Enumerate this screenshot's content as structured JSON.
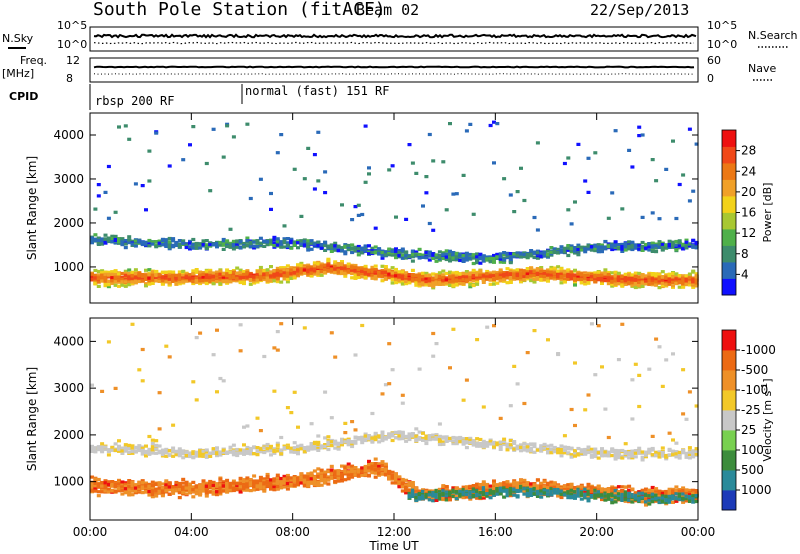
{
  "header": {
    "station": "South Pole Station (fitACF)",
    "beam": "Beam 02",
    "date": "22/Sep/2013"
  },
  "status_panel": {
    "nsky_label": "N.Sky",
    "nsearch_label": "N.Search",
    "freq_label": "Freq.",
    "freq_unit": "[MHz]",
    "nave_label": "Nave",
    "cpid_label": "CPID",
    "noise_top_tick": "10^5",
    "noise_bottom_tick": "10^0",
    "freq_ticks": [
      "12",
      "8"
    ],
    "nave_ticks": [
      "60",
      "0"
    ],
    "cpid_segments": [
      {
        "start_hour": 0,
        "label": "rbsp 200 RF"
      },
      {
        "start_hour": 6,
        "label": "normal (fast) 151 RF"
      }
    ]
  },
  "chart_data": [
    {
      "type": "heatmap",
      "title": "",
      "xlabel": "Time UT",
      "ylabel": "Slant Range [km]",
      "xlim_hours": [
        0,
        24
      ],
      "ylim": [
        180,
        4500
      ],
      "x_tick_labels": [
        "00:00",
        "04:00",
        "08:00",
        "12:00",
        "16:00",
        "20:00",
        "00:00"
      ],
      "y_ticks": [
        1000,
        2000,
        3000,
        4000
      ],
      "colorbar": {
        "label": "Power [dB]",
        "ticks": [
          "4",
          "8",
          "12",
          "16",
          "20",
          "24",
          "28"
        ],
        "colors": [
          "#1010ff",
          "#2a6ab8",
          "#3d8c6c",
          "#4fb04a",
          "#a8c832",
          "#f2d21a",
          "#f0a028",
          "#ec7814",
          "#f04818",
          "#ee1010"
        ]
      },
      "series": [
        {
          "name": "",
          "x_hours": [
            0.5,
            3.0,
            7.0,
            9.4,
            13.5,
            17.5,
            21.5
          ],
          "y_km": [
            750,
            750,
            800,
            1000,
            700,
            850,
            700
          ],
          "value": 26
        },
        {
          "name": "",
          "x_hours": [
            0.5,
            4.0,
            8.0,
            12.0,
            16.0,
            20.0,
            23.5
          ],
          "y_km": [
            1600,
            1500,
            1550,
            1300,
            1200,
            1450,
            1500
          ],
          "value": 8
        }
      ]
    },
    {
      "type": "heatmap",
      "title": "",
      "xlabel": "Time UT",
      "ylabel": "Slant Range [km]",
      "xlim_hours": [
        0,
        24
      ],
      "ylim": [
        180,
        4500
      ],
      "x_tick_labels": [
        "00:00",
        "04:00",
        "08:00",
        "12:00",
        "16:00",
        "20:00",
        "00:00"
      ],
      "y_ticks": [
        1000,
        2000,
        3000,
        4000
      ],
      "colorbar": {
        "label": "Velocity [m s^-1]",
        "ticks": [
          "1000",
          "500",
          "100",
          "25",
          "-25",
          "-100",
          "-500",
          "-1000"
        ],
        "colors": [
          "#1c3ab8",
          "#2a8a9a",
          "#3c8c3c",
          "#78d050",
          "#c8c8c8",
          "#f2c828",
          "#ee9028",
          "#ec6a14",
          "#ee1010"
        ]
      },
      "series": [
        {
          "name": "",
          "x_hours": [
            0.5,
            4.0,
            8.0,
            11.5,
            13.0,
            17.0,
            22.0
          ],
          "y_km": [
            900,
            850,
            1000,
            1300,
            700,
            900,
            700
          ],
          "value": -300
        },
        {
          "name": "",
          "x_hours": [
            13.0,
            17.0,
            22.0
          ],
          "y_km": [
            700,
            800,
            650
          ],
          "value": 400
        },
        {
          "name": "",
          "x_hours": [
            0.5,
            4.0,
            8.0,
            12.0,
            20.0
          ],
          "y_km": [
            1700,
            1600,
            1700,
            2000,
            1600
          ],
          "value": 0
        }
      ]
    }
  ]
}
